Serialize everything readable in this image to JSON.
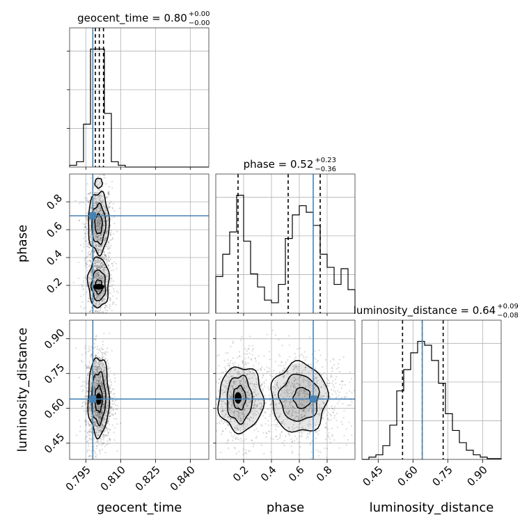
{
  "chart_data": {
    "type": "corner",
    "parameters": [
      {
        "name": "geocent_time",
        "axis_label": "geocent_time",
        "title_main": "geocent_time = 0.80",
        "title_plus": "+0.00",
        "title_minus": "−0.00",
        "range": [
          0.788,
          0.848
        ],
        "ticks": [
          0.795,
          0.81,
          0.825,
          0.84
        ],
        "tick_labels": [
          "0.795",
          "0.810",
          "0.825",
          "0.840"
        ],
        "truth": 0.798,
        "quantiles": [
          0.7991,
          0.8008,
          0.8026
        ],
        "hist_edges": [
          0.788,
          0.791,
          0.794,
          0.797,
          0.8,
          0.803,
          0.806,
          0.809,
          0.812,
          0.815,
          0.818,
          0.821,
          0.824,
          0.827,
          0.83,
          0.833,
          0.836,
          0.839,
          0.842,
          0.845,
          0.848
        ],
        "hist_counts": [
          0.5,
          1.5,
          12,
          33,
          33,
          15,
          1.5,
          0.5,
          0,
          0,
          0,
          0,
          0,
          0,
          0,
          0,
          0,
          0,
          0,
          0
        ]
      },
      {
        "name": "phase",
        "axis_label": "phase",
        "title_main": "phase = 0.52",
        "title_plus": "+0.23",
        "title_minus": "−0.36",
        "range": [
          0.0,
          1.0
        ],
        "ticks": [
          0.2,
          0.4,
          0.6,
          0.8
        ],
        "tick_labels": [
          "0.2",
          "0.4",
          "0.6",
          "0.8"
        ],
        "truth": 0.7,
        "quantiles": [
          0.16,
          0.52,
          0.75
        ],
        "hist_edges": [
          0.0,
          0.05,
          0.1,
          0.15,
          0.2,
          0.25,
          0.3,
          0.35,
          0.4,
          0.45,
          0.5,
          0.55,
          0.6,
          0.65,
          0.7,
          0.75,
          0.8,
          0.85,
          0.9,
          0.95,
          1.0
        ],
        "hist_counts": [
          28,
          45,
          62,
          90,
          55,
          30,
          20,
          10,
          8,
          22,
          57,
          75,
          82,
          77,
          67,
          45,
          35,
          22,
          34,
          18
        ]
      },
      {
        "name": "luminosity_distance",
        "axis_label": "luminosity_distance",
        "title_main": "luminosity_distance = 0.64",
        "title_plus": "+0.09",
        "title_minus": "−0.08",
        "range": [
          0.38,
          0.98
        ],
        "ticks": [
          0.45,
          0.6,
          0.75,
          0.9
        ],
        "tick_labels": [
          "0.45",
          "0.60",
          "0.75",
          "0.90"
        ],
        "truth": 0.64,
        "quantiles": [
          0.555,
          0.64,
          0.73
        ],
        "hist_edges": [
          0.38,
          0.41,
          0.44,
          0.47,
          0.5,
          0.53,
          0.56,
          0.59,
          0.62,
          0.65,
          0.68,
          0.71,
          0.74,
          0.77,
          0.8,
          0.83,
          0.86,
          0.89,
          0.92,
          0.95,
          0.98
        ],
        "hist_counts": [
          0,
          3,
          6,
          18,
          45,
          90,
          118,
          140,
          155,
          150,
          130,
          100,
          60,
          38,
          22,
          12,
          6,
          3,
          1,
          1
        ]
      }
    ],
    "pair_panels": [
      {
        "x": "geocent_time",
        "y": "phase",
        "blobs": [
          {
            "cx": 0.8005,
            "cy": 0.63,
            "sx": 0.0022,
            "sy": 0.12,
            "w": 0.55
          },
          {
            "cx": 0.8005,
            "cy": 0.2,
            "sx": 0.0022,
            "sy": 0.1,
            "w": 0.45
          }
        ],
        "contours": [
          {
            "cx": 0.8005,
            "cy": 0.935,
            "rx": 0.0016,
            "ry": 0.035
          },
          {
            "cx": 0.8005,
            "cy": 0.65,
            "rx": 0.0045,
            "ry": 0.22
          },
          {
            "cx": 0.8005,
            "cy": 0.64,
            "rx": 0.003,
            "ry": 0.14
          },
          {
            "cx": 0.8005,
            "cy": 0.64,
            "rx": 0.0016,
            "ry": 0.07
          },
          {
            "cx": 0.8005,
            "cy": 0.22,
            "rx": 0.0045,
            "ry": 0.18
          },
          {
            "cx": 0.8005,
            "cy": 0.2,
            "rx": 0.003,
            "ry": 0.11
          },
          {
            "cx": 0.8005,
            "cy": 0.19,
            "rx": 0.0016,
            "ry": 0.05
          }
        ],
        "dark_core": {
          "cx": 0.8005,
          "cy": 0.19,
          "rx": 0.0025,
          "ry": 0.02
        }
      },
      {
        "x": "geocent_time",
        "y": "luminosity_distance",
        "blobs": [
          {
            "cx": 0.8005,
            "cy": 0.64,
            "sx": 0.0022,
            "sy": 0.08,
            "w": 1.0
          }
        ],
        "contours": [
          {
            "cx": 0.8005,
            "cy": 0.65,
            "rx": 0.0045,
            "ry": 0.17
          },
          {
            "cx": 0.8005,
            "cy": 0.645,
            "rx": 0.003,
            "ry": 0.11
          },
          {
            "cx": 0.8005,
            "cy": 0.64,
            "rx": 0.0016,
            "ry": 0.055
          }
        ],
        "dark_core": {
          "cx": 0.8005,
          "cy": 0.64,
          "rx": 0.0013,
          "ry": 0.025
        }
      },
      {
        "x": "phase",
        "y": "luminosity_distance",
        "blobs": [
          {
            "cx": 0.17,
            "cy": 0.64,
            "sx": 0.07,
            "sy": 0.075,
            "w": 0.45
          },
          {
            "cx": 0.62,
            "cy": 0.64,
            "sx": 0.13,
            "sy": 0.075,
            "w": 0.55
          }
        ],
        "contours": [
          {
            "cx": 0.18,
            "cy": 0.64,
            "rx": 0.16,
            "ry": 0.14
          },
          {
            "cx": 0.17,
            "cy": 0.64,
            "rx": 0.09,
            "ry": 0.1
          },
          {
            "cx": 0.17,
            "cy": 0.645,
            "rx": 0.045,
            "ry": 0.05
          },
          {
            "cx": 0.6,
            "cy": 0.645,
            "rx": 0.2,
            "ry": 0.15
          },
          {
            "cx": 0.6,
            "cy": 0.645,
            "rx": 0.14,
            "ry": 0.1
          },
          {
            "cx": 0.62,
            "cy": 0.645,
            "rx": 0.06,
            "ry": 0.045
          }
        ],
        "dark_core": {
          "cx": 0.16,
          "cy": 0.645,
          "rx": 0.025,
          "ry": 0.025
        }
      }
    ],
    "colors": {
      "truth": "#4682b4",
      "quantile": "#000000",
      "contour": "#000000",
      "points": "#333333"
    },
    "grid": true
  }
}
